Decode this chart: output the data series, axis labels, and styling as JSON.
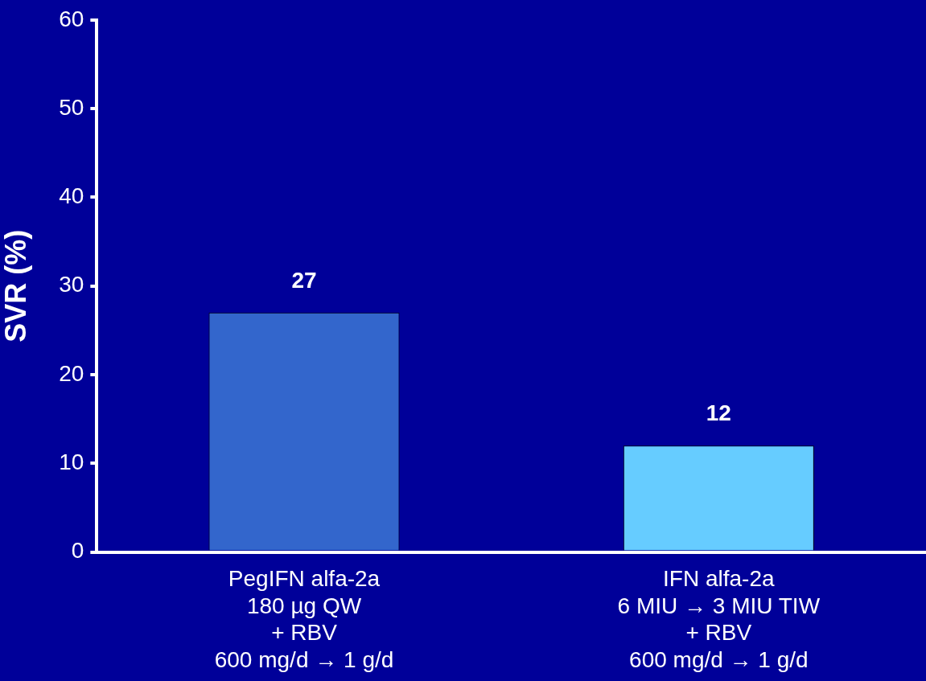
{
  "chart_data": {
    "type": "bar",
    "ylabel": "SVR (%)",
    "categories": [
      "PegIFN alfa-2a\n180 µg QW\n+ RBV\n600 mg/d → 1 g/d",
      "IFN alfa-2a\n6 MIU → 3 MIU TIW\n+ RBV\n600 mg/d → 1 g/d"
    ],
    "values": [
      27,
      12
    ],
    "colors": [
      "#3366cc",
      "#66ccff"
    ],
    "ylim": [
      0,
      60
    ],
    "yticks": [
      0,
      10,
      20,
      30,
      40,
      50,
      60
    ],
    "grid": false,
    "legend": false,
    "data_labels": true
  }
}
